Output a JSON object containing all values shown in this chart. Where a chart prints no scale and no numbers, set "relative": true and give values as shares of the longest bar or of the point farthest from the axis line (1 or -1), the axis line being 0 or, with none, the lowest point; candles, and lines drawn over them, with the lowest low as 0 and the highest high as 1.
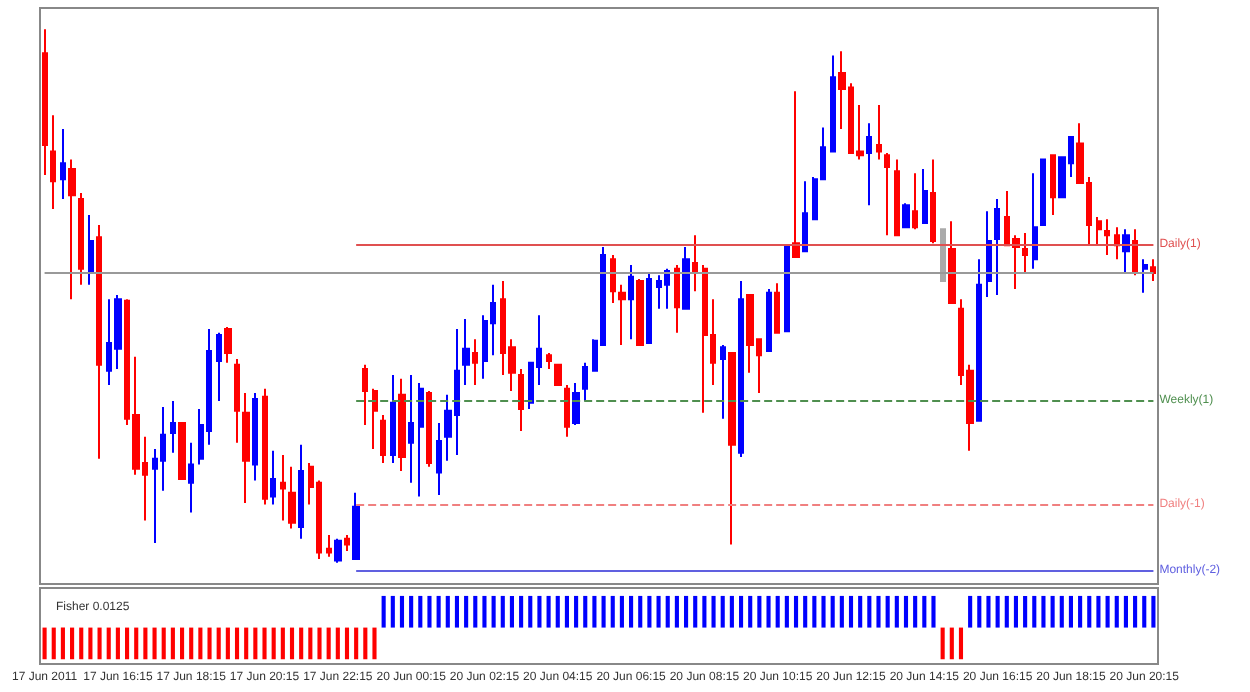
{
  "chart_data": [
    {
      "type": "candlestick",
      "relative": true,
      "grid": false,
      "categories": [
        "17 Jun 2011",
        null,
        null,
        null,
        null,
        null,
        null,
        null,
        "17 Jun 16:15",
        null,
        null,
        null,
        null,
        null,
        null,
        null,
        "17 Jun 18:15",
        null,
        null,
        null,
        null,
        null,
        null,
        null,
        "17 Jun 20:15",
        null,
        null,
        null,
        null,
        null,
        null,
        null,
        "17 Jun 22:15",
        null,
        null,
        null,
        null,
        null,
        null,
        null,
        "20 Jun 00:15",
        null,
        null,
        null,
        null,
        null,
        null,
        null,
        "20 Jun 02:15",
        null,
        null,
        null,
        null,
        null,
        null,
        null,
        "20 Jun 04:15",
        null,
        null,
        null,
        null,
        null,
        null,
        null,
        "20 Jun 06:15",
        null,
        null,
        null,
        null,
        null,
        null,
        null,
        "20 Jun 08:15",
        null,
        null,
        null,
        null,
        null,
        null,
        null,
        "20 Jun 10:15",
        null,
        null,
        null,
        null,
        null,
        null,
        null,
        "20 Jun 12:15",
        null,
        null,
        null,
        null,
        null,
        null,
        null,
        "20 Jun 14:15",
        null,
        null,
        null,
        null,
        null,
        null,
        null,
        "20 Jun 16:15",
        null,
        null,
        null,
        null,
        null,
        null,
        null,
        "20 Jun 18:15",
        null,
        null,
        null,
        null,
        null,
        null,
        null,
        "20 Jun 20:15",
        null
      ],
      "ohlc": [
        [
          0.955,
          1,
          0.727,
          0.783
        ],
        [
          0.771,
          0.839,
          0.663,
          0.715
        ],
        [
          0.719,
          0.813,
          0.682,
          0.749
        ],
        [
          0.738,
          0.756,
          0.494,
          0.689
        ],
        [
          0.682,
          0.693,
          0.521,
          0.551
        ],
        [
          0.543,
          0.652,
          0.521,
          0.603
        ],
        [
          0.61,
          0.633,
          0.195,
          0.371
        ],
        [
          0.36,
          0.494,
          0.333,
          0.412
        ],
        [
          0.401,
          0.502,
          0.363,
          0.494
        ],
        [
          0.491,
          0.494,
          0.258,
          0.27
        ],
        [
          0.277,
          0.386,
          0.165,
          0.176
        ],
        [
          0.187,
          0.236,
          0.079,
          0.165
        ],
        [
          0.176,
          0.213,
          0.037,
          0.195
        ],
        [
          0.191,
          0.292,
          0.135,
          0.24
        ],
        [
          0.243,
          0.303,
          0.206,
          0.262
        ],
        [
          0.262,
          0.262,
          0.157,
          0.157
        ],
        [
          0.15,
          0.225,
          0.094,
          0.184
        ],
        [
          0.195,
          0.288,
          0.184,
          0.258
        ],
        [
          0.247,
          0.438,
          0.221,
          0.397
        ],
        [
          0.378,
          0.431,
          0.303,
          0.427
        ],
        [
          0.438,
          0.442,
          0.375,
          0.393
        ],
        [
          0.371,
          0.382,
          0.225,
          0.285
        ],
        [
          0.281,
          0.318,
          0.112,
          0.191
        ],
        [
          0.184,
          0.318,
          0.154,
          0.307
        ],
        [
          0.311,
          0.326,
          0.109,
          0.12
        ],
        [
          0.124,
          0.21,
          0.109,
          0.157
        ],
        [
          0.15,
          0.202,
          0.079,
          0.139
        ],
        [
          0.131,
          0.18,
          0.064,
          0.075
        ],
        [
          0.067,
          0.221,
          0.045,
          0.172
        ],
        [
          0.18,
          0.187,
          0.109,
          0.142
        ],
        [
          0.15,
          0.154,
          0.007,
          0.019
        ],
        [
          0.026,
          0.052,
          0.011,
          0.019
        ],
        [
          0.004,
          0.045,
          0,
          0.041
        ],
        [
          0.045,
          0.052,
          0.022,
          0.034
        ],
        [
          0.007,
          0.131,
          0.007,
          0.105
        ],
        [
          0.363,
          0.371,
          0.258,
          0.322
        ],
        [
          0.322,
          0.326,
          0.213,
          0.285
        ],
        [
          0.266,
          0.277,
          0.187,
          0.202
        ],
        [
          0.202,
          0.352,
          0.187,
          0.3
        ],
        [
          0.315,
          0.345,
          0.172,
          0.198
        ],
        [
          0.225,
          0.352,
          0.15,
          0.262
        ],
        [
          0.255,
          0.337,
          0.124,
          0.326
        ],
        [
          0.318,
          0.322,
          0.18,
          0.187
        ],
        [
          0.169,
          0.262,
          0.127,
          0.228
        ],
        [
          0.236,
          0.315,
          0.191,
          0.285
        ],
        [
          0.277,
          0.438,
          0.202,
          0.36
        ],
        [
          0.371,
          0.457,
          0.333,
          0.401
        ],
        [
          0.393,
          0.419,
          0.333,
          0.375
        ],
        [
          0.378,
          0.464,
          0.345,
          0.453
        ],
        [
          0.449,
          0.521,
          0.389,
          0.487
        ],
        [
          0.494,
          0.528,
          0.352,
          0.393
        ],
        [
          0.404,
          0.419,
          0.322,
          0.356
        ],
        [
          0.352,
          0.363,
          0.247,
          0.288
        ],
        [
          0.3,
          0.375,
          0.288,
          0.375
        ],
        [
          0.367,
          0.464,
          0.333,
          0.401
        ],
        [
          0.389,
          0.393,
          0.363,
          0.378
        ],
        [
          0.371,
          0.371,
          0.333,
          0.333
        ],
        [
          0.326,
          0.333,
          0.236,
          0.255
        ],
        [
          0.262,
          0.337,
          0.258,
          0.318
        ],
        [
          0.326,
          0.375,
          0.303,
          0.367
        ],
        [
          0.36,
          0.419,
          0.36,
          0.416
        ],
        [
          0.408,
          0.592,
          0.408,
          0.577
        ],
        [
          0.569,
          0.577,
          0.487,
          0.509
        ],
        [
          0.506,
          0.521,
          0.408,
          0.494
        ],
        [
          0.494,
          0.558,
          0.419,
          0.536
        ],
        [
          0.528,
          0.532,
          0.408,
          0.408
        ],
        [
          0.412,
          0.543,
          0.412,
          0.532
        ],
        [
          0.517,
          0.539,
          0.476,
          0.528
        ],
        [
          0.521,
          0.551,
          0.476,
          0.547
        ],
        [
          0.551,
          0.558,
          0.431,
          0.479
        ],
        [
          0.476,
          0.592,
          0.476,
          0.569
        ],
        [
          0.562,
          0.614,
          0.509,
          0.543
        ],
        [
          0.551,
          0.558,
          0.281,
          0.427
        ],
        [
          0.427,
          0.494,
          0.333,
          0.375
        ],
        [
          0.382,
          0.408,
          0.27,
          0.404
        ],
        [
          0.393,
          0.393,
          0.034,
          0.221
        ],
        [
          0.206,
          0.528,
          0.198,
          0.494
        ],
        [
          0.502,
          0.502,
          0.356,
          0.408
        ],
        [
          0.419,
          0.419,
          0.318,
          0.389
        ],
        [
          0.397,
          0.513,
          0.397,
          0.506
        ],
        [
          0.506,
          0.524,
          0.431,
          0.431
        ],
        [
          0.434,
          0.595,
          0.434,
          0.592
        ],
        [
          0.599,
          0.884,
          0.573,
          0.573
        ],
        [
          0.584,
          0.715,
          0.584,
          0.655
        ],
        [
          0.644,
          0.723,
          0.644,
          0.719
        ],
        [
          0.719,
          0.816,
          0.719,
          0.779
        ],
        [
          0.771,
          0.951,
          0.771,
          0.91
        ],
        [
          0.918,
          0.959,
          0.813,
          0.888
        ],
        [
          0.891,
          0.899,
          0.768,
          0.768
        ],
        [
          0.771,
          0.858,
          0.756,
          0.764
        ],
        [
          0.768,
          0.824,
          0.67,
          0.798
        ],
        [
          0.783,
          0.858,
          0.756,
          0.771
        ],
        [
          0.764,
          0.768,
          0.614,
          0.742
        ],
        [
          0.734,
          0.756,
          0.614,
          0.614
        ],
        [
          0.629,
          0.674,
          0.629,
          0.67
        ],
        [
          0.659,
          0.73,
          0.625,
          0.629
        ],
        [
          0.637,
          0.738,
          0.637,
          0.697
        ],
        [
          0.693,
          0.756,
          0.599,
          0.603
        ],
        [
          0.625,
          0.625,
          0.528,
          0.528
        ],
        [
          0.588,
          0.64,
          0.487,
          0.487
        ],
        [
          0.476,
          0.494,
          0.333,
          0.352
        ],
        [
          0.36,
          0.371,
          0.21,
          0.262
        ],
        [
          0.266,
          0.569,
          0.266,
          0.521
        ],
        [
          0.528,
          0.659,
          0.498,
          0.603
        ],
        [
          0.607,
          0.682,
          0.502,
          0.663
        ],
        [
          0.648,
          0.697,
          0.595,
          0.595
        ],
        [
          0.607,
          0.614,
          0.513,
          0.592
        ],
        [
          0.588,
          0.618,
          0.543,
          0.577
        ],
        [
          0.569,
          0.73,
          0.551,
          0.629
        ],
        [
          0.633,
          0.756,
          0.633,
          0.756
        ],
        [
          0.764,
          0.764,
          0.652,
          0.685
        ],
        [
          0.685,
          0.76,
          0.685,
          0.76
        ],
        [
          0.749,
          0.798,
          0.723,
          0.798
        ],
        [
          0.786,
          0.824,
          0.712,
          0.712
        ],
        [
          0.712,
          0.723,
          0.595,
          0.633
        ],
        [
          0.64,
          0.648,
          0.595,
          0.625
        ],
        [
          0.622,
          0.644,
          0.577,
          0.614
        ],
        [
          0.614,
          0.629,
          0.569,
          0.595
        ],
        [
          0.584,
          0.625,
          0.543,
          0.614
        ],
        [
          0.603,
          0.625,
          0.539,
          0.543
        ],
        [
          0.551,
          0.569,
          0.506,
          0.558
        ],
        [
          0.554,
          0.569,
          0.528,
          0.543
        ]
      ],
      "colors": [
        "#ff0000",
        "#ff0000",
        "#0000ff",
        "#ff0000",
        "#ff0000",
        "#0000ff",
        "#ff0000",
        "#0000ff",
        "#0000ff",
        "#ff0000",
        "#ff0000",
        "#ff0000",
        "#0000ff",
        "#0000ff",
        "#0000ff",
        "#ff0000",
        "#0000ff",
        "#0000ff",
        "#0000ff",
        "#0000ff",
        "#ff0000",
        "#ff0000",
        "#ff0000",
        "#0000ff",
        "#ff0000",
        "#0000ff",
        "#ff0000",
        "#ff0000",
        "#0000ff",
        "#ff0000",
        "#ff0000",
        "#ff0000",
        "#0000ff",
        "#ff0000",
        "#0000ff",
        "#ff0000",
        "#ff0000",
        "#ff0000",
        "#0000ff",
        "#ff0000",
        "#0000ff",
        "#0000ff",
        "#ff0000",
        "#0000ff",
        "#0000ff",
        "#0000ff",
        "#0000ff",
        "#ff0000",
        "#0000ff",
        "#0000ff",
        "#ff0000",
        "#ff0000",
        "#ff0000",
        "#0000ff",
        "#0000ff",
        "#ff0000",
        "#ff0000",
        "#ff0000",
        "#0000ff",
        "#0000ff",
        "#0000ff",
        "#0000ff",
        "#ff0000",
        "#ff0000",
        "#0000ff",
        "#ff0000",
        "#0000ff",
        "#0000ff",
        "#0000ff",
        "#ff0000",
        "#0000ff",
        "#ff0000",
        "#ff0000",
        "#ff0000",
        "#0000ff",
        "#ff0000",
        "#0000ff",
        "#ff0000",
        "#ff0000",
        "#0000ff",
        "#ff0000",
        "#0000ff",
        "#ff0000",
        "#0000ff",
        "#0000ff",
        "#0000ff",
        "#0000ff",
        "#ff0000",
        "#ff0000",
        "#ff0000",
        "#0000ff",
        "#ff0000",
        "#ff0000",
        "#ff0000",
        "#0000ff",
        "#ff0000",
        "#0000ff",
        "#ff0000",
        "#aaaaaa",
        "#ff0000",
        "#ff0000",
        "#ff0000",
        "#0000ff",
        "#0000ff",
        "#0000ff",
        "#ff0000",
        "#ff0000",
        "#ff0000",
        "#0000ff",
        "#0000ff",
        "#ff0000",
        "#0000ff",
        "#0000ff",
        "#ff0000",
        "#ff0000",
        "#ff0000",
        "#ff0000",
        "#ff0000",
        "#0000ff",
        "#ff0000",
        "#0000ff",
        "#ff0000"
      ],
      "ref_lines": [
        {
          "axis": "y",
          "value": 0.596,
          "label": "Daily(1)",
          "color": "#e05050",
          "line_style": "solid"
        },
        {
          "axis": "y",
          "value": 0.543,
          "color": "#999999",
          "line_style": "solid"
        },
        {
          "axis": "y",
          "value": 0.303,
          "label": "Weekly(1)",
          "color": "#4f8f4f",
          "line_style": "dashed"
        },
        {
          "axis": "y",
          "value": 0.109,
          "label": "Daily(-1)",
          "color": "#f08080",
          "line_style": "dashed"
        },
        {
          "axis": "y",
          "value": -0.015,
          "label": "Monthly(-2)",
          "color": "#6060e0",
          "line_style": "solid"
        }
      ]
    },
    {
      "type": "bar",
      "title": "Fisher 0.0125",
      "relative": true,
      "grid": false,
      "values": [
        -1,
        -1,
        -1,
        -1,
        -1,
        -1,
        -1,
        -1,
        -1,
        -1,
        -1,
        -1,
        -1,
        -1,
        -1,
        -1,
        -1,
        -1,
        -1,
        -1,
        -1,
        -1,
        -1,
        -1,
        -1,
        -1,
        -1,
        -1,
        -1,
        -1,
        -1,
        -1,
        -1,
        -1,
        -1,
        -1,
        -1,
        1,
        1,
        1,
        1,
        1,
        1,
        1,
        1,
        1,
        1,
        1,
        1,
        1,
        1,
        1,
        1,
        1,
        1,
        1,
        1,
        1,
        1,
        1,
        1,
        1,
        1,
        1,
        1,
        1,
        1,
        1,
        1,
        1,
        1,
        1,
        1,
        1,
        1,
        1,
        1,
        1,
        1,
        1,
        1,
        1,
        1,
        1,
        1,
        1,
        1,
        1,
        1,
        1,
        1,
        1,
        1,
        1,
        1,
        1,
        1,
        1,
        -1,
        -1,
        -1,
        1,
        1,
        1,
        1,
        1,
        1,
        1,
        1,
        1,
        1,
        1,
        1,
        1,
        1,
        1,
        1,
        1,
        1,
        1,
        1,
        1
      ],
      "colors": [
        "#ff0000",
        "#ff0000",
        "#ff0000",
        "#ff0000",
        "#ff0000",
        "#ff0000",
        "#ff0000",
        "#ff0000",
        "#ff0000",
        "#ff0000",
        "#ff0000",
        "#ff0000",
        "#ff0000",
        "#ff0000",
        "#ff0000",
        "#ff0000",
        "#ff0000",
        "#ff0000",
        "#ff0000",
        "#ff0000",
        "#ff0000",
        "#ff0000",
        "#ff0000",
        "#ff0000",
        "#ff0000",
        "#ff0000",
        "#ff0000",
        "#ff0000",
        "#ff0000",
        "#ff0000",
        "#ff0000",
        "#ff0000",
        "#ff0000",
        "#ff0000",
        "#ff0000",
        "#ff0000",
        "#ff0000",
        "#0000ff",
        "#0000ff",
        "#0000ff",
        "#0000ff",
        "#0000ff",
        "#0000ff",
        "#0000ff",
        "#0000ff",
        "#0000ff",
        "#0000ff",
        "#0000ff",
        "#0000ff",
        "#0000ff",
        "#0000ff",
        "#0000ff",
        "#0000ff",
        "#0000ff",
        "#0000ff",
        "#0000ff",
        "#0000ff",
        "#0000ff",
        "#0000ff",
        "#0000ff",
        "#0000ff",
        "#0000ff",
        "#0000ff",
        "#0000ff",
        "#0000ff",
        "#0000ff",
        "#0000ff",
        "#0000ff",
        "#0000ff",
        "#0000ff",
        "#0000ff",
        "#0000ff",
        "#0000ff",
        "#0000ff",
        "#0000ff",
        "#0000ff",
        "#0000ff",
        "#0000ff",
        "#0000ff",
        "#0000ff",
        "#0000ff",
        "#0000ff",
        "#0000ff",
        "#0000ff",
        "#0000ff",
        "#0000ff",
        "#0000ff",
        "#0000ff",
        "#0000ff",
        "#0000ff",
        "#0000ff",
        "#0000ff",
        "#0000ff",
        "#0000ff",
        "#0000ff",
        "#0000ff",
        "#0000ff",
        "#0000ff",
        "#ff0000",
        "#ff0000",
        "#ff0000",
        "#0000ff",
        "#0000ff",
        "#0000ff",
        "#0000ff",
        "#0000ff",
        "#0000ff",
        "#0000ff",
        "#0000ff",
        "#0000ff",
        "#0000ff",
        "#0000ff",
        "#0000ff",
        "#0000ff",
        "#0000ff",
        "#0000ff",
        "#0000ff",
        "#0000ff",
        "#0000ff",
        "#0000ff",
        "#0000ff",
        "#0000ff"
      ]
    }
  ]
}
